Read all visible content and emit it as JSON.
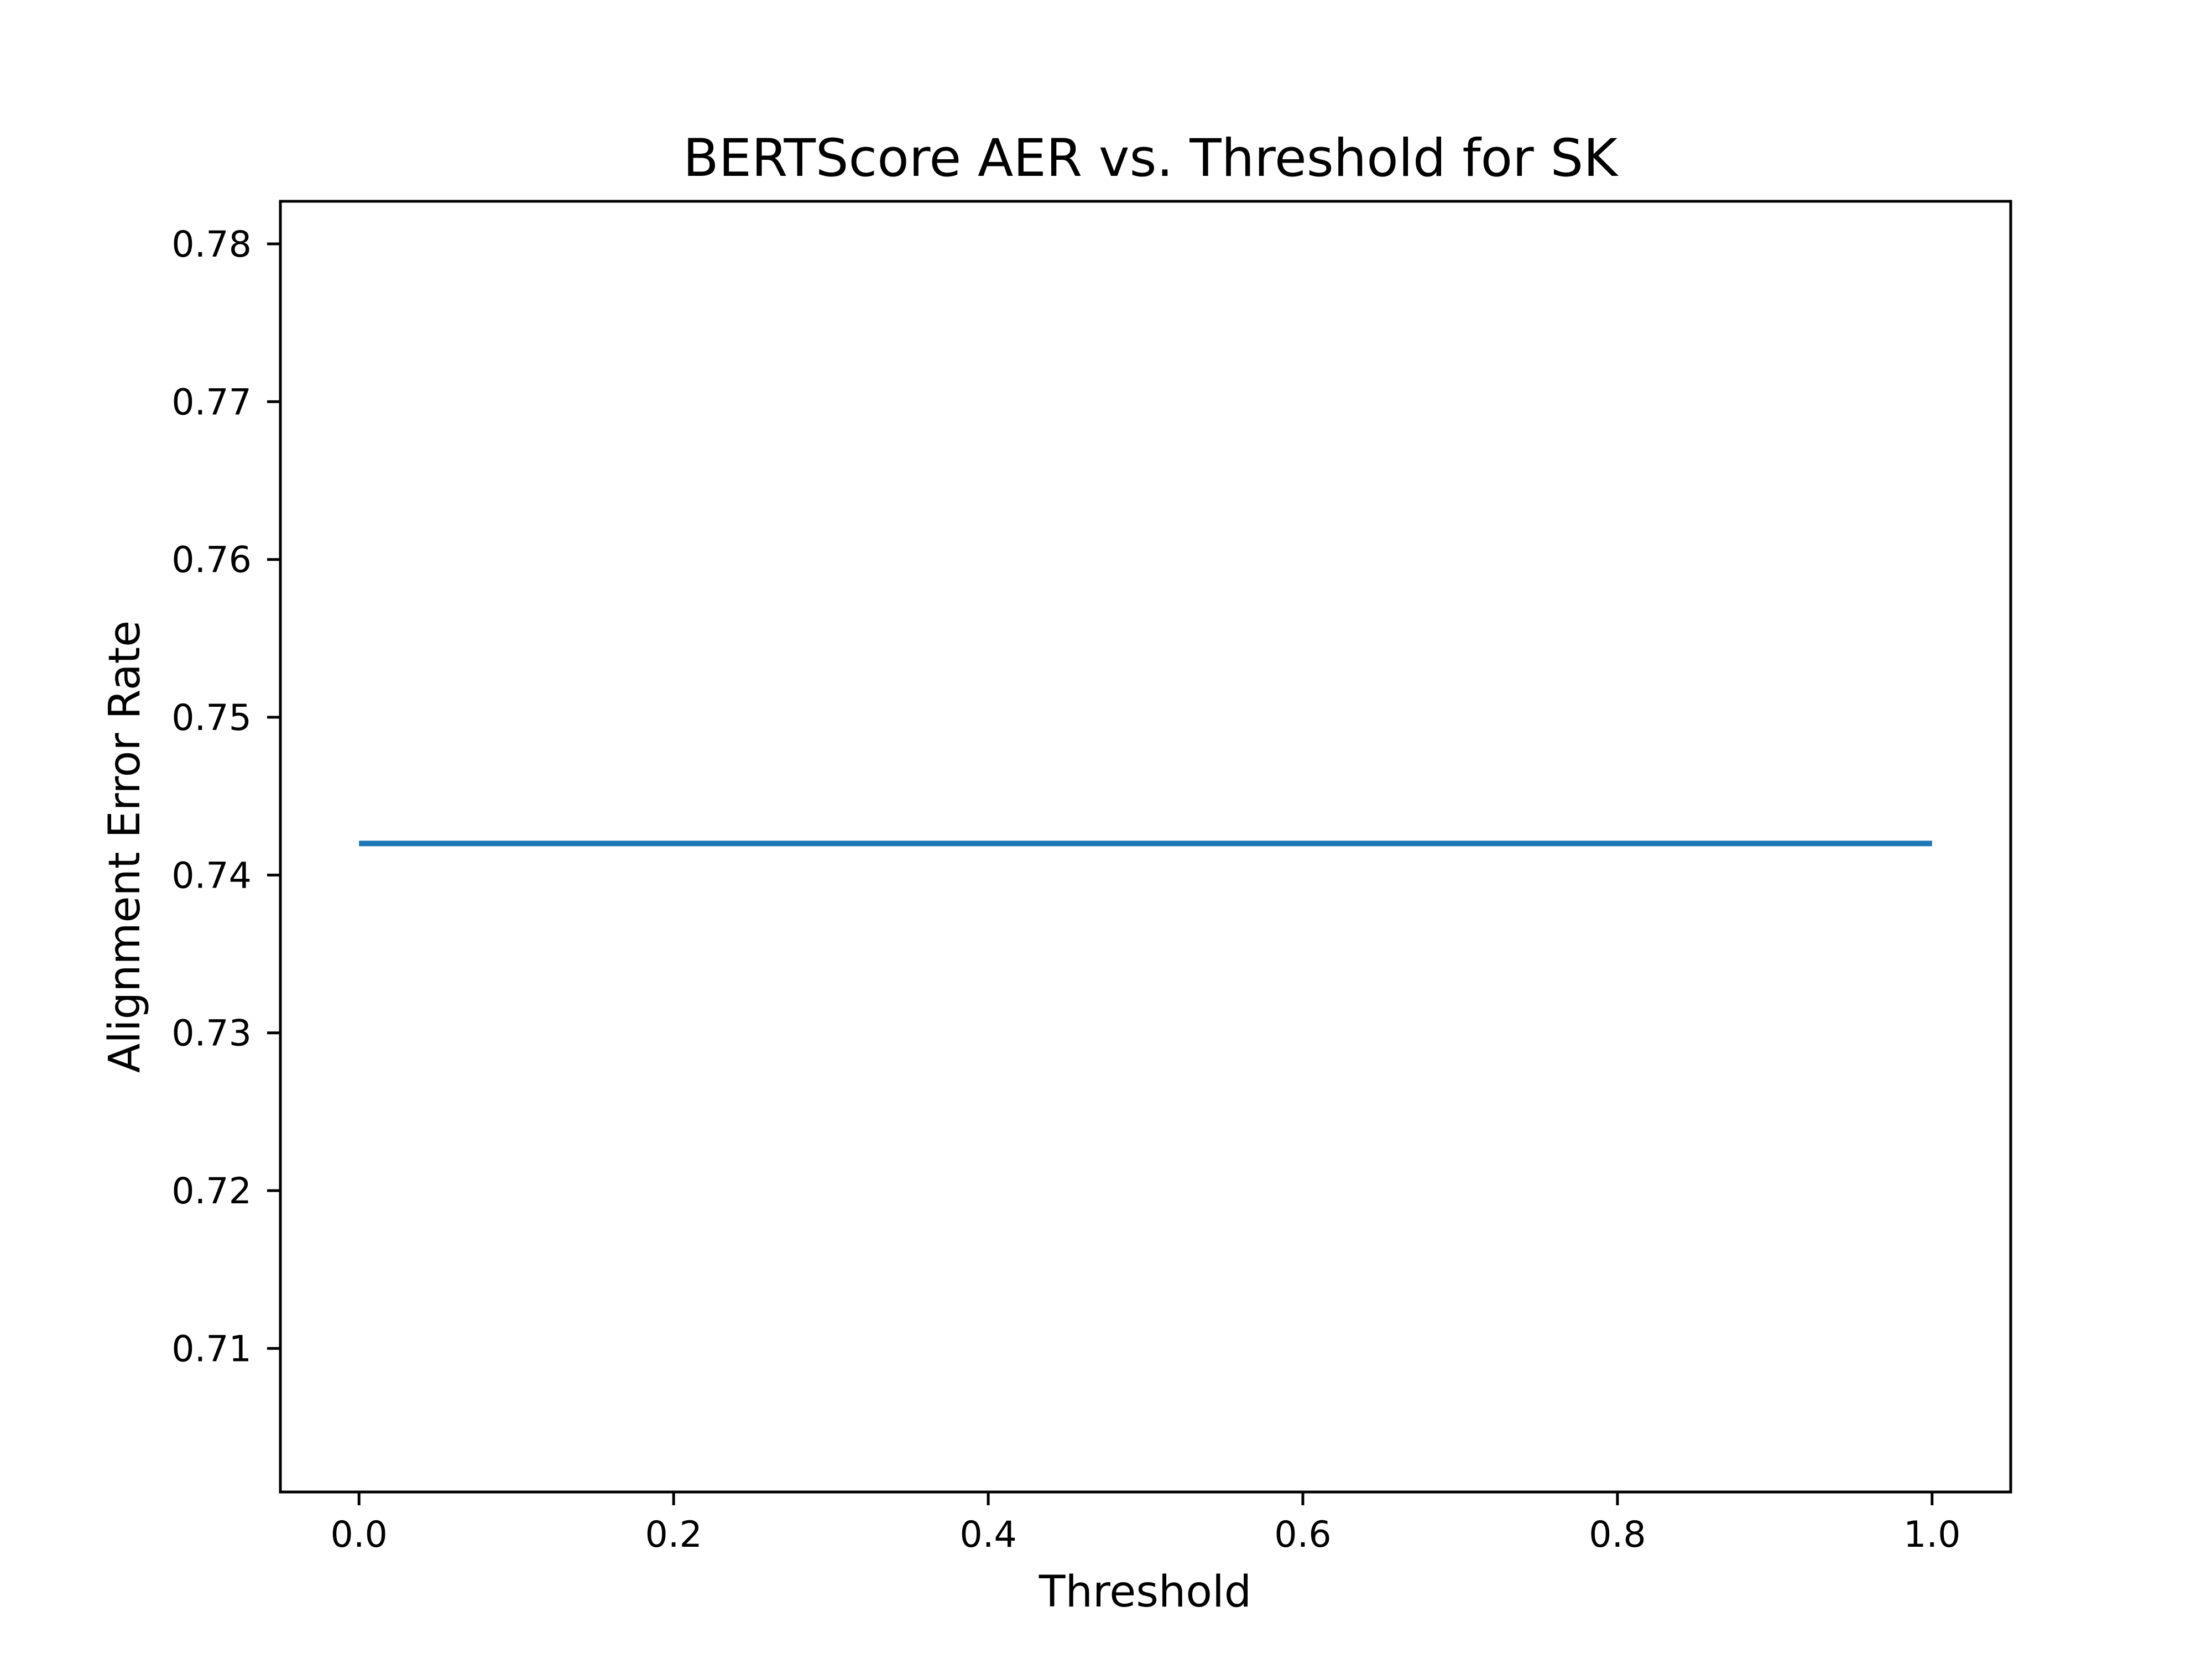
{
  "chart_data": {
    "type": "line",
    "title": "BERTScore AER vs. Threshold for SK",
    "xlabel": "Threshold",
    "ylabel": "Alignment Error Rate",
    "xlim": [
      -0.05,
      1.05
    ],
    "ylim": [
      0.7009,
      0.7827
    ],
    "xticks": [
      0.0,
      0.2,
      0.4,
      0.6,
      0.8,
      1.0
    ],
    "xtick_labels": [
      "0.0",
      "0.2",
      "0.4",
      "0.6",
      "0.8",
      "1.0"
    ],
    "yticks": [
      0.71,
      0.72,
      0.73,
      0.74,
      0.75,
      0.76,
      0.77,
      0.78
    ],
    "ytick_labels": [
      "0.71",
      "0.72",
      "0.73",
      "0.74",
      "0.75",
      "0.76",
      "0.77",
      "0.78"
    ],
    "grid": false,
    "series": [
      {
        "color": "#1f77b4",
        "x": [
          0.0,
          0.1,
          0.2,
          0.3,
          0.4,
          0.5,
          0.6,
          0.7,
          0.8,
          0.9,
          1.0
        ],
        "y": [
          0.742,
          0.742,
          0.742,
          0.742,
          0.742,
          0.742,
          0.742,
          0.742,
          0.742,
          0.742,
          0.742
        ]
      }
    ]
  }
}
